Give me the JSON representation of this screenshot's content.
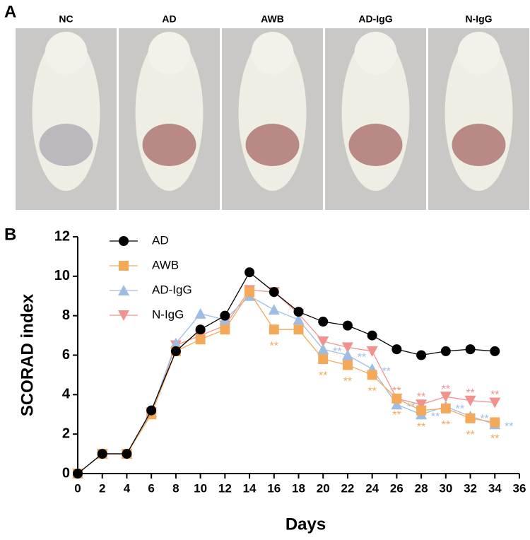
{
  "panel_a": {
    "label": "A",
    "photos": [
      "NC",
      "AD",
      "AWB",
      "AD-IgG",
      "N-IgG"
    ]
  },
  "chart_data": {
    "type": "line",
    "panel_label": "B",
    "xlabel": "Days",
    "ylabel": "SCORAD index",
    "x": [
      0,
      2,
      4,
      6,
      8,
      10,
      12,
      14,
      16,
      18,
      20,
      22,
      24,
      26,
      28,
      30,
      32,
      34
    ],
    "xlim": [
      0,
      36
    ],
    "xticks": [
      0,
      2,
      4,
      6,
      8,
      10,
      12,
      14,
      16,
      18,
      20,
      22,
      24,
      26,
      28,
      30,
      32,
      34,
      36
    ],
    "ylim": [
      0,
      12
    ],
    "yticks": [
      0,
      2,
      4,
      6,
      8,
      10,
      12
    ],
    "series": [
      {
        "name": "AD",
        "color": "#000000",
        "marker": "circle",
        "values": [
          0,
          1,
          1,
          3.2,
          6.2,
          7.3,
          8.0,
          10.2,
          9.2,
          8.2,
          7.7,
          7.5,
          7.0,
          6.3,
          6.0,
          6.2,
          6.3,
          6.2
        ]
      },
      {
        "name": "AWB",
        "color": "#f4a95a",
        "marker": "square",
        "values": [
          0,
          1,
          1,
          3.0,
          6.2,
          6.8,
          7.3,
          9.2,
          7.3,
          7.3,
          5.8,
          5.5,
          5.0,
          3.8,
          3.2,
          3.3,
          2.8,
          2.6
        ],
        "significance": [
          null,
          null,
          null,
          null,
          null,
          null,
          null,
          null,
          "**",
          null,
          "**",
          "**",
          "**",
          "**",
          "**",
          "**",
          "**",
          "**"
        ]
      },
      {
        "name": "AD-IgG",
        "color": "#9fbde3",
        "marker": "triangle-up",
        "values": [
          0,
          1,
          1,
          3.1,
          6.6,
          8.1,
          7.8,
          9.0,
          8.3,
          7.8,
          6.3,
          6.0,
          5.3,
          3.5,
          3.0,
          3.4,
          2.9,
          2.5
        ],
        "significance": [
          null,
          null,
          null,
          null,
          null,
          null,
          null,
          null,
          null,
          null,
          "**",
          "**",
          "**",
          "**",
          "**",
          "**",
          "**",
          "**"
        ]
      },
      {
        "name": "N-IgG",
        "color": "#f0938e",
        "marker": "triangle-down",
        "values": [
          0,
          1,
          1,
          3.1,
          6.5,
          7.0,
          7.5,
          9.3,
          9.2,
          8.1,
          6.7,
          6.4,
          6.2,
          3.8,
          3.5,
          3.9,
          3.7,
          3.6
        ],
        "significance": [
          null,
          null,
          null,
          null,
          null,
          null,
          null,
          null,
          null,
          null,
          null,
          null,
          null,
          "**",
          "**",
          "**",
          "**",
          "**"
        ]
      }
    ]
  }
}
